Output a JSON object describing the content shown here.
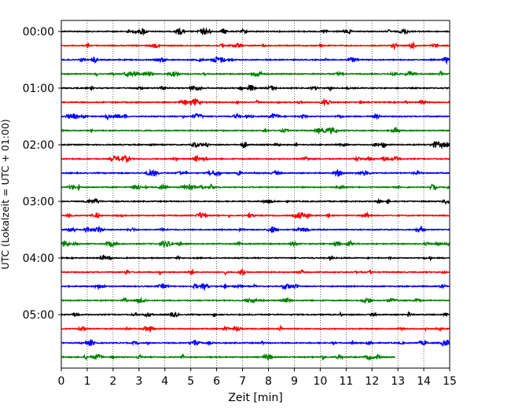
{
  "chart_data": {
    "type": "line",
    "title": "",
    "xlabel": "Zeit  [min]",
    "ylabel": "UTC (Lokalzeit = UTC + 01:00)",
    "xlim": [
      0,
      15
    ],
    "x_ticks": [
      "0",
      "1",
      "2",
      "3",
      "4",
      "5",
      "6",
      "7",
      "8",
      "9",
      "10",
      "11",
      "12",
      "13",
      "14",
      "15"
    ],
    "y_ticks": [
      {
        "label": "00:00",
        "row": 0
      },
      {
        "label": "01:00",
        "row": 4
      },
      {
        "label": "02:00",
        "row": 8
      },
      {
        "label": "03:00",
        "row": 12
      },
      {
        "label": "04:00",
        "row": 16
      },
      {
        "label": "05:00",
        "row": 20
      }
    ],
    "grid": "vertical dotted",
    "color_cycle": [
      "#000000",
      "#ff0000",
      "#0000ff",
      "#008000"
    ],
    "trace_interval_min": 15,
    "traces": [
      {
        "start": "00:00",
        "end_min": 15
      },
      {
        "start": "00:15",
        "end_min": 15
      },
      {
        "start": "00:30",
        "end_min": 15
      },
      {
        "start": "00:45",
        "end_min": 15
      },
      {
        "start": "01:00",
        "end_min": 15
      },
      {
        "start": "01:15",
        "end_min": 15
      },
      {
        "start": "01:30",
        "end_min": 15
      },
      {
        "start": "01:45",
        "end_min": 15
      },
      {
        "start": "02:00",
        "end_min": 15
      },
      {
        "start": "02:15",
        "end_min": 15
      },
      {
        "start": "02:30",
        "end_min": 15
      },
      {
        "start": "02:45",
        "end_min": 15
      },
      {
        "start": "03:00",
        "end_min": 15
      },
      {
        "start": "03:15",
        "end_min": 15
      },
      {
        "start": "03:30",
        "end_min": 15
      },
      {
        "start": "03:45",
        "end_min": 15
      },
      {
        "start": "04:00",
        "end_min": 15
      },
      {
        "start": "04:15",
        "end_min": 15
      },
      {
        "start": "04:30",
        "end_min": 15
      },
      {
        "start": "04:45",
        "end_min": 15
      },
      {
        "start": "05:00",
        "end_min": 15
      },
      {
        "start": "05:15",
        "end_min": 15
      },
      {
        "start": "05:30",
        "end_min": 15
      },
      {
        "start": "05:45",
        "end_min": 12.9
      }
    ]
  }
}
